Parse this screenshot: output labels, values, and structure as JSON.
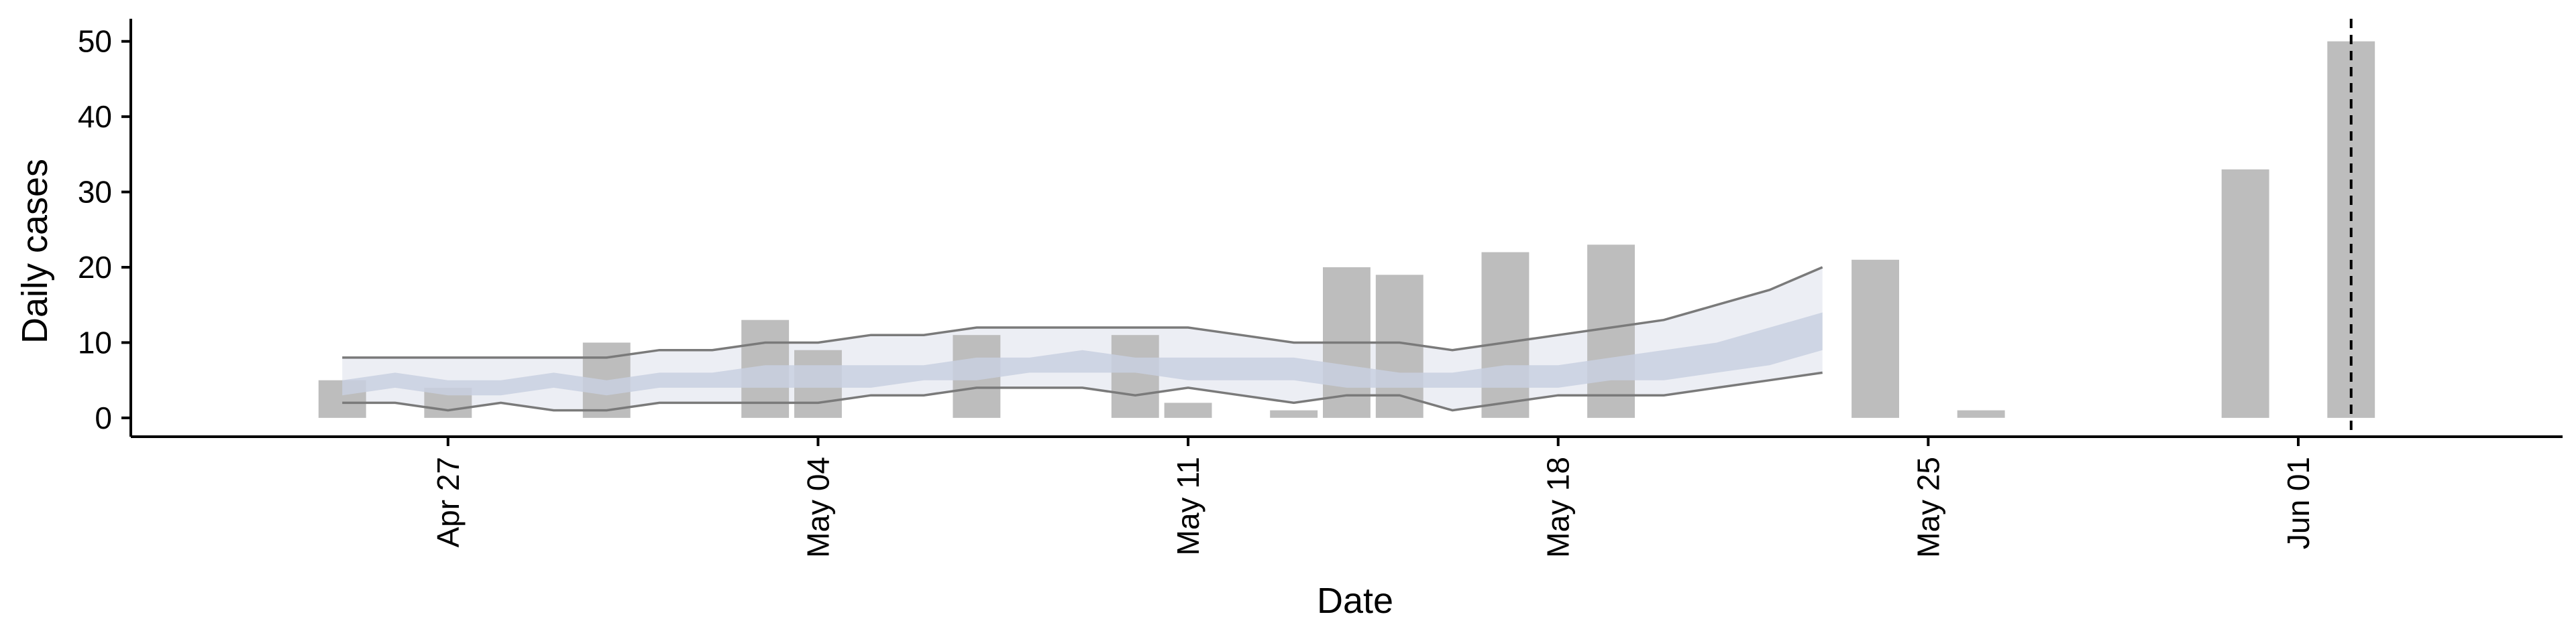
{
  "chart_data": {
    "type": "bar",
    "xlabel": "Date",
    "ylabel": "Daily cases",
    "title": "",
    "x_start": "2020-04-24",
    "xlim": [
      "2020-04-21",
      "2020-06-06"
    ],
    "ylim": [
      -2.5,
      53
    ],
    "yticks": [
      0,
      10,
      20,
      30,
      40,
      50
    ],
    "xticks": [
      {
        "date": "2020-04-27",
        "label": "Apr 27"
      },
      {
        "date": "2020-05-04",
        "label": "May 04"
      },
      {
        "date": "2020-05-11",
        "label": "May 11"
      },
      {
        "date": "2020-05-18",
        "label": "May 18"
      },
      {
        "date": "2020-05-25",
        "label": "May 25"
      },
      {
        "date": "2020-06-01",
        "label": "Jun 01"
      }
    ],
    "bars": [
      {
        "date": "2020-04-25",
        "value": 5
      },
      {
        "date": "2020-04-27",
        "value": 4
      },
      {
        "date": "2020-04-30",
        "value": 10
      },
      {
        "date": "2020-05-03",
        "value": 13
      },
      {
        "date": "2020-05-04",
        "value": 9
      },
      {
        "date": "2020-05-07",
        "value": 11
      },
      {
        "date": "2020-05-10",
        "value": 11
      },
      {
        "date": "2020-05-11",
        "value": 2
      },
      {
        "date": "2020-05-13",
        "value": 1
      },
      {
        "date": "2020-05-14",
        "value": 20
      },
      {
        "date": "2020-05-15",
        "value": 19
      },
      {
        "date": "2020-05-17",
        "value": 22
      },
      {
        "date": "2020-05-19",
        "value": 23
      },
      {
        "date": "2020-05-24",
        "value": 21
      },
      {
        "date": "2020-05-26",
        "value": 1
      },
      {
        "date": "2020-05-31",
        "value": 33
      },
      {
        "date": "2020-06-02",
        "value": 50
      }
    ],
    "band_dates": [
      "2020-04-25",
      "2020-04-26",
      "2020-04-27",
      "2020-04-28",
      "2020-04-29",
      "2020-04-30",
      "2020-05-01",
      "2020-05-02",
      "2020-05-03",
      "2020-05-04",
      "2020-05-05",
      "2020-05-06",
      "2020-05-07",
      "2020-05-08",
      "2020-05-09",
      "2020-05-10",
      "2020-05-11",
      "2020-05-12",
      "2020-05-13",
      "2020-05-14",
      "2020-05-15",
      "2020-05-16",
      "2020-05-17",
      "2020-05-18",
      "2020-05-19",
      "2020-05-20",
      "2020-05-21",
      "2020-05-22",
      "2020-05-23"
    ],
    "outer_band_upper": [
      8,
      8,
      8,
      8,
      8,
      8,
      9,
      9,
      10,
      10,
      11,
      11,
      12,
      12,
      12,
      12,
      12,
      11,
      10,
      10,
      10,
      9,
      10,
      11,
      12,
      13,
      15,
      17,
      20
    ],
    "outer_band_lower": [
      2,
      2,
      1,
      2,
      1,
      1,
      2,
      2,
      2,
      2,
      3,
      3,
      4,
      4,
      4,
      3,
      4,
      3,
      2,
      3,
      3,
      1,
      2,
      3,
      3,
      3,
      4,
      5,
      6
    ],
    "inner_band_upper": [
      5,
      6,
      5,
      5,
      6,
      5,
      6,
      6,
      7,
      7,
      7,
      7,
      8,
      8,
      9,
      8,
      8,
      8,
      8,
      7,
      6,
      6,
      7,
      7,
      8,
      9,
      10,
      12,
      14
    ],
    "inner_band_lower": [
      3,
      4,
      3,
      3,
      4,
      3,
      4,
      4,
      4,
      4,
      4,
      5,
      5,
      6,
      6,
      6,
      5,
      5,
      5,
      4,
      4,
      4,
      4,
      4,
      5,
      5,
      6,
      7,
      9
    ],
    "vline_date": "2020-06-02",
    "grid": false,
    "legend": "none",
    "colors": {
      "bars": "#bdbdbd",
      "outer_band": "#eceef4",
      "inner_band": "#c9d0e0",
      "band_edge": "#7a7a7a",
      "axis": "#000000"
    }
  }
}
